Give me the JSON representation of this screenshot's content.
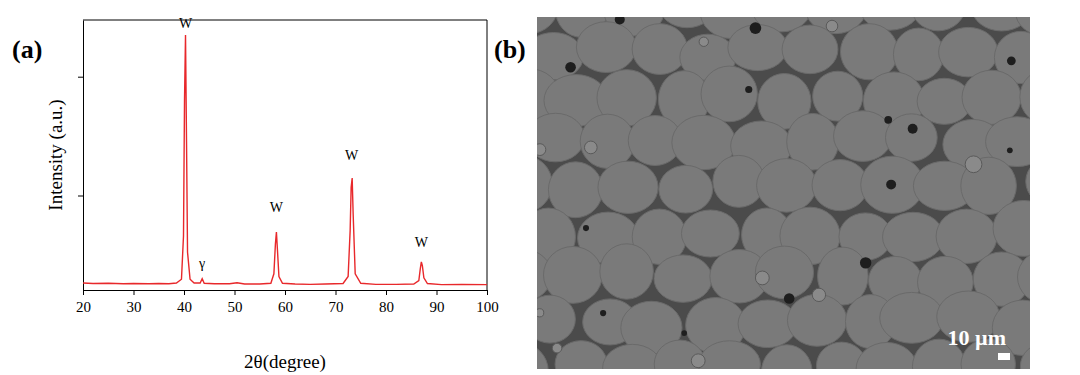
{
  "chart_data": {
    "type": "line",
    "title": "(a)",
    "xlabel": "2θ(degree)",
    "ylabel": "Intensity (a.u.)",
    "x": [
      20,
      22,
      25,
      28,
      30,
      33,
      35,
      37,
      38.5,
      39.5,
      39.9,
      40.1,
      40.3,
      40.5,
      40.7,
      41.2,
      42,
      43.2,
      43.6,
      44,
      46,
      49,
      50.5,
      52,
      55,
      57.2,
      57.8,
      58.1,
      58.3,
      58.5,
      58.8,
      59.5,
      62,
      65,
      68,
      71.5,
      72.5,
      72.9,
      73.1,
      73.3,
      73.5,
      73.9,
      75,
      78,
      82,
      85.5,
      86.5,
      86.8,
      87,
      87.2,
      87.5,
      88.2,
      91,
      95,
      100
    ],
    "values": [
      2.6,
      2.4,
      2.5,
      2.3,
      2.4,
      2.3,
      2.4,
      2.3,
      2.6,
      4.0,
      20,
      70,
      94.4,
      55,
      14,
      4.0,
      2.6,
      2.6,
      4.2,
      2.5,
      2.3,
      2.3,
      2.7,
      2.2,
      2.2,
      2.5,
      6,
      17,
      21.5,
      15,
      5,
      2.5,
      2.2,
      2.1,
      2.2,
      2.4,
      5,
      22,
      38,
      41.5,
      28,
      6,
      2.5,
      2.1,
      2.1,
      2.2,
      3.5,
      8,
      10.4,
      9,
      4.5,
      2.4,
      2.0,
      2.1,
      2.0
    ],
    "color": "#e8282b",
    "xlim": [
      20,
      100
    ],
    "xticks": [
      20,
      30,
      40,
      50,
      60,
      70,
      80,
      90,
      100
    ],
    "ylim": [
      0,
      100
    ],
    "yticks": [
      35,
      79
    ],
    "tick_labels": "x",
    "annotations": [
      {
        "text": "W",
        "x": 40.3,
        "y": 97
      },
      {
        "text": "γ",
        "x": 43.6,
        "y": 8
      },
      {
        "text": "W",
        "x": 58.3,
        "y": 29
      },
      {
        "text": "W",
        "x": 73.2,
        "y": 48
      },
      {
        "text": "W",
        "x": 87,
        "y": 16
      }
    ]
  },
  "image": {
    "label": "(b)",
    "scale_bar": "10 µm"
  }
}
